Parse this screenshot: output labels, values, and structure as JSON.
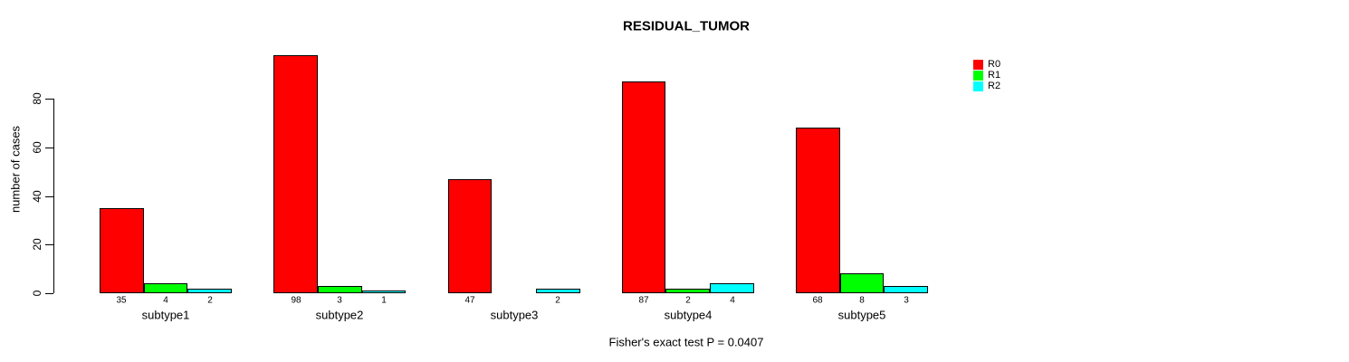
{
  "title": "RESIDUAL_TUMOR",
  "chart_data": {
    "type": "bar",
    "title": "RESIDUAL_TUMOR",
    "categories": [
      "subtype1",
      "subtype2",
      "subtype3",
      "subtype4",
      "subtype5"
    ],
    "series": [
      {
        "name": "R0",
        "color": "#FF0000",
        "values": [
          35,
          98,
          47,
          87,
          68
        ]
      },
      {
        "name": "R1",
        "color": "#00FF00",
        "values": [
          4,
          3,
          0,
          2,
          8
        ]
      },
      {
        "name": "R2",
        "color": "#00FFFF",
        "values": [
          2,
          1,
          2,
          4,
          3
        ]
      }
    ],
    "xlabel": "",
    "ylabel": "number of cases",
    "yticks": [
      0,
      20,
      40,
      60,
      80
    ],
    "ylim": [
      0,
      105
    ],
    "grid": false,
    "legend_position": "top-right",
    "bar_border_color": "#000000",
    "show_values_under_bars": true,
    "annotation": "Fisher's exact test P = 0.0407"
  }
}
